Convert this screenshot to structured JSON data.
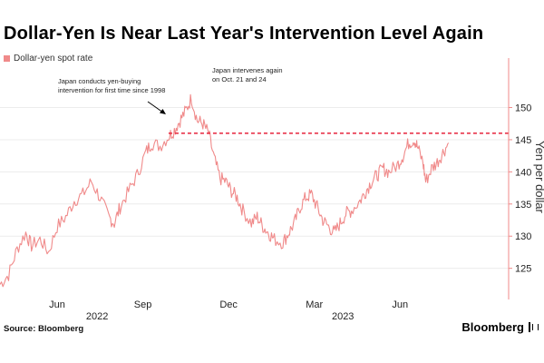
{
  "chart_data": {
    "type": "line",
    "title": "Dollar-Yen Is Near Last Year's Intervention Level Again",
    "legend": [
      "Dollar-yen spot rate"
    ],
    "ylabel": "Yen per dollar",
    "xlabel": "",
    "ylim": [
      121,
      156
    ],
    "y_ticks": [
      125,
      130,
      135,
      140,
      145,
      150
    ],
    "x_ticks": [
      "Jun",
      "Sep",
      "Dec",
      "Mar",
      "Jun"
    ],
    "x_tick_positions": [
      4,
      7,
      10,
      13,
      16
    ],
    "year_labels": [
      {
        "label": "2022",
        "at_month": 5.4
      },
      {
        "label": "2023",
        "at_month": 14.0
      }
    ],
    "x_range_months": [
      2,
      19.8
    ],
    "series": [
      {
        "name": "Dollar-yen spot rate",
        "color": "#f08a8a",
        "points": [
          [
            2.0,
            122.5
          ],
          [
            2.3,
            124.0
          ],
          [
            2.6,
            128.0
          ],
          [
            2.9,
            130.5
          ],
          [
            3.1,
            128.5
          ],
          [
            3.4,
            129.5
          ],
          [
            3.7,
            127.5
          ],
          [
            4.0,
            131.5
          ],
          [
            4.3,
            133.0
          ],
          [
            4.6,
            135.5
          ],
          [
            4.9,
            136.5
          ],
          [
            5.2,
            138.5
          ],
          [
            5.5,
            136.0
          ],
          [
            5.8,
            133.0
          ],
          [
            6.0,
            132.0
          ],
          [
            6.2,
            134.5
          ],
          [
            6.5,
            137.0
          ],
          [
            6.8,
            139.5
          ],
          [
            7.1,
            143.0
          ],
          [
            7.3,
            144.5
          ],
          [
            7.6,
            144.0
          ],
          [
            7.9,
            145.5
          ],
          [
            8.1,
            146.5
          ],
          [
            8.3,
            148.0
          ],
          [
            8.5,
            149.5
          ],
          [
            8.7,
            151.5
          ],
          [
            8.9,
            148.0
          ],
          [
            9.1,
            147.5
          ],
          [
            9.3,
            146.0
          ],
          [
            9.5,
            142.0
          ],
          [
            9.7,
            139.0
          ],
          [
            9.9,
            138.5
          ],
          [
            10.1,
            137.0
          ],
          [
            10.3,
            136.0
          ],
          [
            10.5,
            134.0
          ],
          [
            10.8,
            132.0
          ],
          [
            11.0,
            133.0
          ],
          [
            11.2,
            131.5
          ],
          [
            11.4,
            130.5
          ],
          [
            11.6,
            129.5
          ],
          [
            11.9,
            129.0
          ],
          [
            12.1,
            130.5
          ],
          [
            12.3,
            132.0
          ],
          [
            12.5,
            134.5
          ],
          [
            12.7,
            136.0
          ],
          [
            12.9,
            136.5
          ],
          [
            13.1,
            134.5
          ],
          [
            13.3,
            132.5
          ],
          [
            13.5,
            131.5
          ],
          [
            13.7,
            130.5
          ],
          [
            13.9,
            132.0
          ],
          [
            14.1,
            133.5
          ],
          [
            14.3,
            134.0
          ],
          [
            14.6,
            135.5
          ],
          [
            14.8,
            137.0
          ],
          [
            15.0,
            138.5
          ],
          [
            15.2,
            139.5
          ],
          [
            15.4,
            140.5
          ],
          [
            15.6,
            140.0
          ],
          [
            15.9,
            141.0
          ],
          [
            16.1,
            142.5
          ],
          [
            16.3,
            144.5
          ],
          [
            16.5,
            145.0
          ],
          [
            16.6,
            144.0
          ],
          [
            16.8,
            141.5
          ],
          [
            16.9,
            138.5
          ],
          [
            17.1,
            140.5
          ],
          [
            17.3,
            141.5
          ],
          [
            17.5,
            143.0
          ],
          [
            17.7,
            144.5
          ]
        ]
      }
    ],
    "reference_line": {
      "value": 146,
      "style": "dashed",
      "color": "#e8344a",
      "from_month": 7.9,
      "to_month": 17.9
    },
    "annotations": [
      {
        "lines": [
          "Japan conducts yen-buying",
          "intervention for first time since 1998"
        ],
        "arrow": true
      },
      {
        "lines": [
          "Japan intervenes again",
          "on Oct. 21 and 24"
        ],
        "arrow": false
      }
    ]
  },
  "source": "Source: Bloomberg",
  "brand": "Bloomberg"
}
